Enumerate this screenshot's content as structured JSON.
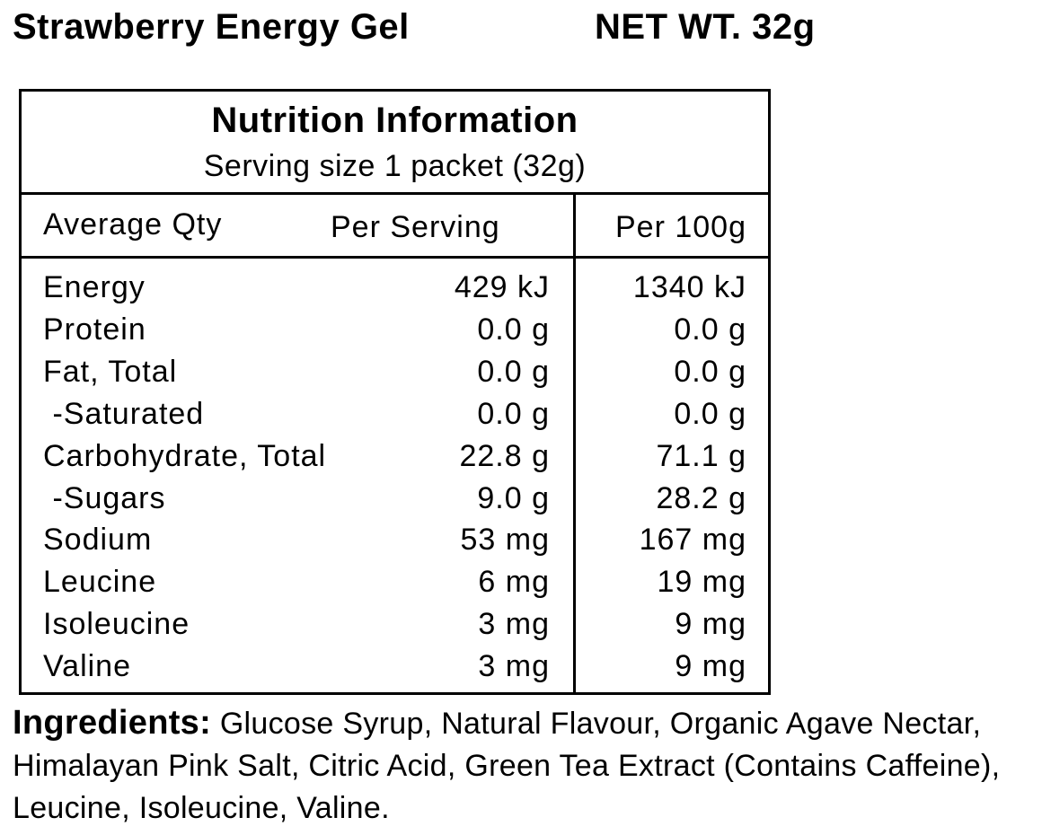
{
  "header": {
    "title": "Strawberry Energy Gel",
    "net_weight": "NET WT. 32g"
  },
  "panel": {
    "title": "Nutrition Information",
    "serving": "Serving size 1 packet (32g)",
    "columns": [
      "Average Qty",
      "Per Serving",
      "Per 100g"
    ],
    "rows": [
      [
        "Energy",
        "429 kJ",
        "1340 kJ"
      ],
      [
        "Protein",
        "0.0 g",
        "0.0 g"
      ],
      [
        "Fat, Total",
        "0.0 g",
        "0.0 g"
      ],
      [
        " -Saturated",
        "0.0 g",
        "0.0 g"
      ],
      [
        "Carbohydrate, Total",
        "22.8 g",
        "71.1 g"
      ],
      [
        " -Sugars",
        "9.0 g",
        "28.2 g"
      ],
      [
        "Sodium",
        "53 mg",
        "167 mg"
      ],
      [
        "Leucine",
        "6 mg",
        "19 mg"
      ],
      [
        "Isoleucine",
        "3 mg",
        "9 mg"
      ],
      [
        "Valine",
        "3 mg",
        "9 mg"
      ]
    ]
  },
  "ingredients": {
    "label": "Ingredients:",
    "text": "Glucose Syrup, Natural Flavour, Organic Agave Nectar, Himalayan Pink Salt, Citric Acid, Green Tea Extract (Contains Caffeine), Leucine, Isoleucine, Valine."
  }
}
